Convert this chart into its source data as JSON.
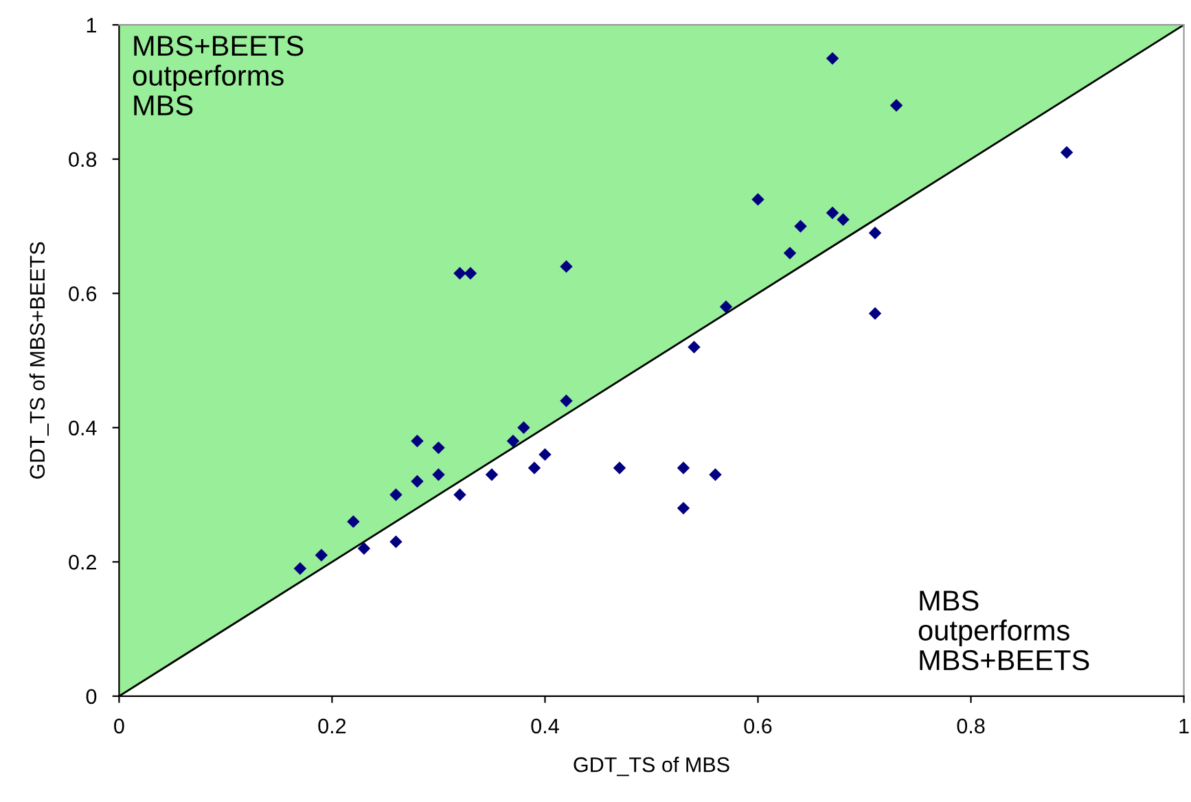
{
  "chart_data": {
    "type": "scatter",
    "xlabel": "GDT_TS of MBS",
    "ylabel": "GDT_TS of MBS+BEETS",
    "xlim": [
      0,
      1
    ],
    "ylim": [
      0,
      1
    ],
    "xticks": [
      0,
      0.2,
      0.4,
      0.6,
      0.8,
      1
    ],
    "yticks": [
      0,
      0.2,
      0.4,
      0.6,
      0.8,
      1
    ],
    "grid": false,
    "legend": false,
    "annotations": [
      "MBS+BEETS\noutperforms\nMBS",
      "MBS\noutperforms\nMBS+BEETS"
    ],
    "series": [
      {
        "type": "area",
        "color": "#99ee99",
        "x": [
          0,
          1
        ],
        "lower": [
          0,
          1
        ],
        "upper": [
          1,
          1
        ],
        "values": [
          null,
          null
        ]
      },
      {
        "type": "line",
        "color": "#000000",
        "x": [
          0,
          1
        ],
        "values": [
          0,
          1
        ]
      },
      {
        "color": "#000080",
        "marker": "diamond",
        "x": [
          0.17,
          0.19,
          0.22,
          0.23,
          0.26,
          0.26,
          0.28,
          0.28,
          0.3,
          0.3,
          0.32,
          0.32,
          0.33,
          0.35,
          0.37,
          0.38,
          0.39,
          0.4,
          0.42,
          0.42,
          0.47,
          0.53,
          0.53,
          0.54,
          0.56,
          0.57,
          0.6,
          0.63,
          0.64,
          0.67,
          0.67,
          0.68,
          0.71,
          0.71,
          0.73,
          0.89
        ],
        "values": [
          0.19,
          0.21,
          0.26,
          0.22,
          0.3,
          0.23,
          0.38,
          0.32,
          0.37,
          0.33,
          0.3,
          0.63,
          0.63,
          0.33,
          0.38,
          0.4,
          0.34,
          0.36,
          0.64,
          0.44,
          0.34,
          0.34,
          0.28,
          0.52,
          0.33,
          0.58,
          0.74,
          0.66,
          0.7,
          0.72,
          0.95,
          0.71,
          0.69,
          0.57,
          0.88,
          0.81
        ]
      }
    ]
  }
}
